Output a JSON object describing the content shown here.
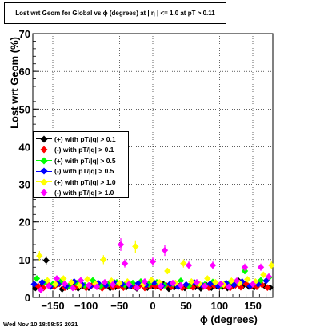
{
  "footer_text": "Wed Nov 10 18:58:53 2021",
  "chart_data": {
    "type": "scatter",
    "title": "Lost wrt Geom for Global vs ϕ (degrees) at |  η | <= 1.0 at pT > 0.11",
    "xlabel": "ϕ (degrees)",
    "ylabel": "Lost wrt Geom (%)",
    "xlim": [
      -180,
      180
    ],
    "ylim": [
      0,
      70
    ],
    "xticks": [
      -150,
      -100,
      -50,
      0,
      50,
      100,
      150
    ],
    "xtick_labels": [
      "−150",
      "−100",
      "−50",
      "0",
      "50",
      "100",
      "150"
    ],
    "yticks": [
      10,
      20,
      30,
      40,
      50,
      60,
      70
    ],
    "ytick_labels": [
      "10",
      "20",
      "30",
      "40",
      "50",
      "60",
      "70"
    ],
    "y_zero_label": "0",
    "grid": true,
    "legend_position": "left",
    "series": [
      {
        "name": "(+) with pT/|q| > 0.1",
        "color": "#000000",
        "x": [
          -176,
          -168,
          -160,
          -152,
          -144,
          -136,
          -128,
          -120,
          -112,
          -104,
          -96,
          -88,
          -80,
          -72,
          -64,
          -56,
          -48,
          -40,
          -32,
          -24,
          -16,
          -8,
          0,
          8,
          16,
          24,
          32,
          40,
          48,
          56,
          64,
          72,
          80,
          88,
          96,
          104,
          112,
          120,
          128,
          136,
          144,
          152,
          160,
          168,
          176
        ],
        "y": [
          2.5,
          2.8,
          9.8,
          3.0,
          3.5,
          2.2,
          2.8,
          3.6,
          2.4,
          3.0,
          2.6,
          3.4,
          2.9,
          3.2,
          2.5,
          2.8,
          3.3,
          2.7,
          3.1,
          2.4,
          3.8,
          2.6,
          3.0,
          2.9,
          3.5,
          2.3,
          2.7,
          3.0,
          2.5,
          3.1,
          2.8,
          2.4,
          3.3,
          2.6,
          3.0,
          2.8,
          2.5,
          3.1,
          4.5,
          3.2,
          2.9,
          2.7,
          4.0,
          3.0,
          2.6
        ]
      },
      {
        "name": "(-) with pT/|q| > 0.1",
        "color": "#ff0000",
        "x": [
          -172,
          -164,
          -156,
          -148,
          -140,
          -132,
          -124,
          -116,
          -108,
          -100,
          -92,
          -84,
          -76,
          -68,
          -60,
          -52,
          -44,
          -36,
          -28,
          -20,
          -12,
          -4,
          4,
          12,
          20,
          28,
          36,
          44,
          52,
          60,
          68,
          76,
          84,
          92,
          100,
          108,
          116,
          124,
          132,
          140,
          148,
          156,
          164,
          172
        ],
        "y": [
          3.0,
          2.5,
          3.2,
          2.8,
          3.6,
          2.6,
          3.0,
          2.7,
          3.4,
          2.5,
          3.1,
          2.9,
          2.4,
          3.3,
          2.7,
          3.0,
          2.6,
          3.5,
          2.8,
          3.1,
          2.5,
          3.0,
          2.9,
          2.6,
          3.2,
          2.8,
          3.4,
          2.5,
          3.0,
          2.7,
          3.3,
          2.9,
          2.6,
          3.1,
          2.8,
          3.0,
          2.5,
          3.2,
          2.7,
          3.6,
          3.0,
          2.8,
          3.3,
          2.6
        ]
      },
      {
        "name": "(+) with pT/|q| > 0.5",
        "color": "#00ff00",
        "x": [
          -174,
          -162,
          -150,
          -138,
          -126,
          -114,
          -102,
          -90,
          -78,
          -66,
          -54,
          -42,
          -30,
          -18,
          -6,
          6,
          18,
          30,
          42,
          54,
          66,
          78,
          90,
          102,
          114,
          126,
          138,
          150,
          162,
          174
        ],
        "y": [
          5.0,
          4.0,
          3.5,
          4.2,
          3.0,
          3.8,
          3.2,
          4.5,
          3.0,
          3.6,
          4.0,
          3.3,
          3.8,
          4.2,
          3.5,
          4.0,
          3.2,
          3.6,
          4.4,
          3.0,
          3.8,
          3.4,
          4.1,
          3.2,
          3.7,
          4.0,
          7.0,
          3.5,
          4.5,
          5.2
        ]
      },
      {
        "name": "(-) with pT/|q| > 0.5",
        "color": "#0000ff",
        "x": [
          -178,
          -166,
          -154,
          -142,
          -130,
          -118,
          -106,
          -94,
          -82,
          -70,
          -58,
          -46,
          -34,
          -22,
          -10,
          2,
          14,
          26,
          38,
          50,
          62,
          74,
          86,
          98,
          110,
          122,
          134,
          146,
          158,
          170
        ],
        "y": [
          3.5,
          4.0,
          2.8,
          3.6,
          3.0,
          4.2,
          3.4,
          2.9,
          3.8,
          3.2,
          4.0,
          3.5,
          3.0,
          3.7,
          3.3,
          3.9,
          3.1,
          3.6,
          2.8,
          3.4,
          4.0,
          3.2,
          3.6,
          3.0,
          3.8,
          3.3,
          4.2,
          3.0,
          3.5,
          4.4
        ]
      },
      {
        "name": "(+) with pT/|q| > 1.0",
        "color": "#ffff00",
        "x": [
          -170,
          -158,
          -146,
          -134,
          -122,
          -110,
          -98,
          -86,
          -74,
          -62,
          -50,
          -38,
          -26,
          -14,
          -2,
          10,
          22,
          34,
          46,
          58,
          70,
          82,
          94,
          106,
          118,
          130,
          142,
          154,
          166,
          178
        ],
        "y": [
          11.0,
          4.5,
          3.5,
          5.0,
          4.0,
          3.2,
          4.8,
          3.6,
          10.0,
          4.4,
          3.8,
          4.2,
          13.5,
          3.5,
          4.6,
          4.0,
          7.0,
          3.8,
          9.0,
          4.2,
          3.6,
          5.0,
          4.0,
          3.4,
          4.4,
          3.8,
          4.8,
          4.2,
          6.0,
          8.5
        ]
      },
      {
        "name": "(-) with pT/|q| > 1.0",
        "color": "#ff00ff",
        "x": [
          -168,
          -156,
          -144,
          -132,
          -120,
          -108,
          -96,
          -84,
          -72,
          -60,
          -48,
          -42,
          -36,
          -24,
          -12,
          0,
          12,
          18,
          30,
          42,
          54,
          66,
          78,
          90,
          102,
          114,
          126,
          138,
          150,
          162,
          174
        ],
        "y": [
          2.0,
          3.0,
          5.0,
          3.6,
          2.5,
          4.5,
          3.2,
          2.8,
          4.0,
          3.4,
          14.0,
          9.0,
          3.5,
          2.6,
          4.2,
          9.5,
          3.0,
          12.5,
          3.8,
          3.2,
          8.5,
          4.0,
          3.0,
          8.5,
          3.6,
          2.8,
          4.4,
          8.0,
          3.5,
          8.0,
          5.5
        ]
      }
    ]
  }
}
